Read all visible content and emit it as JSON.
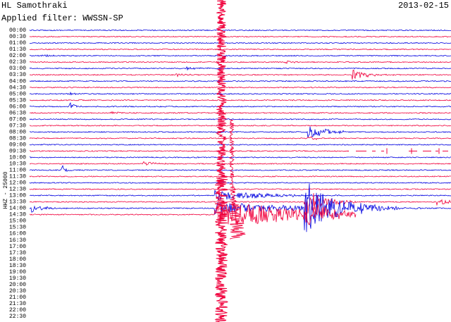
{
  "header": {
    "station": "HL Samothraki",
    "date": "2013-02-15",
    "filter": "Applied filter: WWSSN-SP"
  },
  "axis_label": "HHZ - 25000",
  "time_labels": [
    "00:00",
    "00:30",
    "01:00",
    "01:30",
    "02:00",
    "02:30",
    "03:00",
    "03:30",
    "04:00",
    "04:30",
    "05:00",
    "05:30",
    "06:00",
    "06:30",
    "07:00",
    "07:30",
    "08:00",
    "08:30",
    "09:00",
    "09:30",
    "10:00",
    "10:30",
    "11:00",
    "11:30",
    "12:00",
    "12:30",
    "13:00",
    "13:30",
    "14:00",
    "14:30",
    "15:00",
    "15:30",
    "16:00",
    "16:30",
    "17:00",
    "17:30",
    "18:00",
    "18:30",
    "19:00",
    "19:30",
    "20:00",
    "20:30",
    "21:00",
    "21:30",
    "22:00",
    "22:30"
  ]
}
